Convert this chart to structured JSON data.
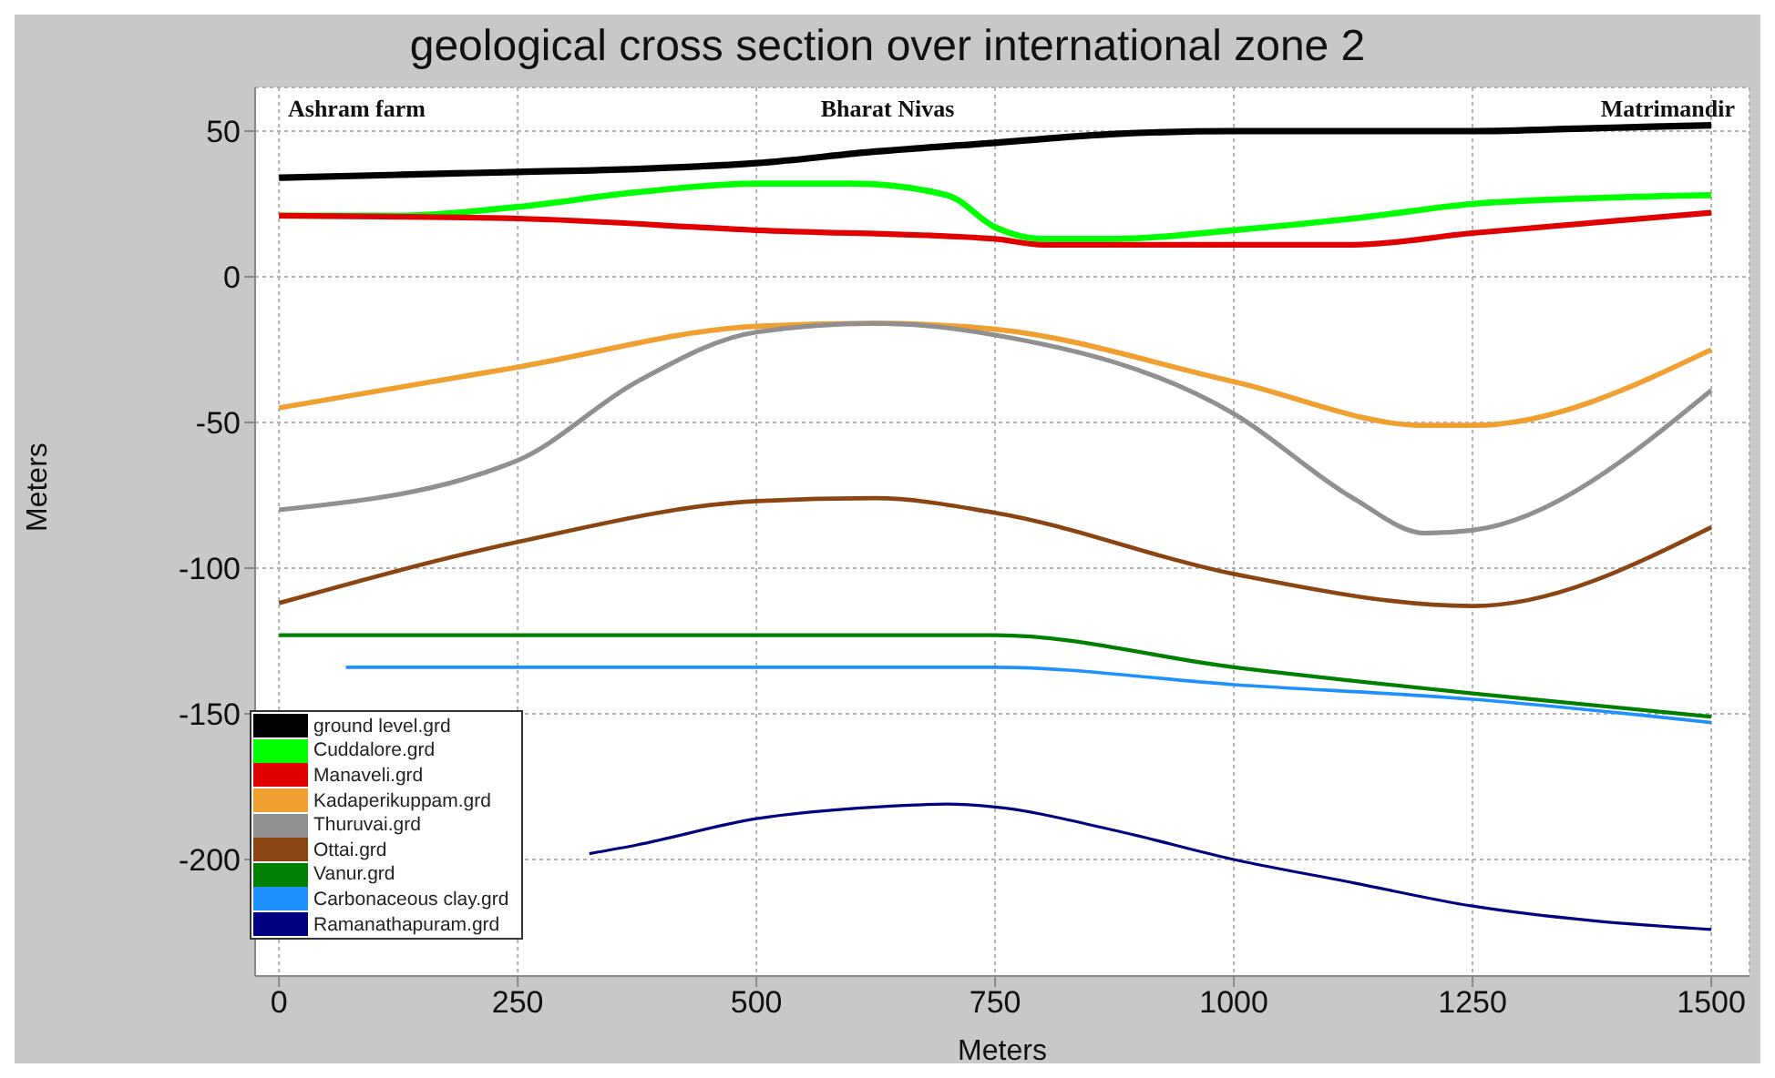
{
  "chart_data": {
    "type": "line",
    "title": "geological cross section over international zone 2",
    "xlabel": "Meters",
    "ylabel": "Meters",
    "xlim": [
      -25,
      1540
    ],
    "xticks": [
      0,
      250,
      500,
      750,
      1000,
      1250,
      1500
    ],
    "ylim": [
      -240,
      65
    ],
    "yticks": [
      -200,
      -150,
      -100,
      -50,
      0,
      50
    ],
    "grid": true,
    "legend": "bottom left",
    "annotations": [
      "Ashram farm",
      "Bharat Nivas",
      "Matrimandir"
    ],
    "series": [
      {
        "name": "ground level.grd",
        "color": "#000000",
        "x": [
          0,
          125,
          250,
          375,
          500,
          625,
          750,
          875,
          1000,
          1125,
          1250,
          1375,
          1500
        ],
        "values": [
          34,
          35,
          36,
          37,
          39,
          43,
          46,
          49,
          50,
          50,
          50,
          51,
          52
        ]
      },
      {
        "name": "Cuddalore.grd",
        "color": "#00ff00",
        "x": [
          0,
          125,
          250,
          375,
          500,
          600,
          700,
          750,
          800,
          875,
          1000,
          1125,
          1250,
          1375,
          1500
        ],
        "values": [
          21,
          21,
          24,
          29,
          32,
          32,
          28,
          17,
          13,
          13,
          16,
          20,
          25,
          27,
          28
        ]
      },
      {
        "name": "Manaveli.grd",
        "color": "#e00000",
        "x": [
          0,
          250,
          500,
          750,
          800,
          1000,
          1125,
          1250,
          1500
        ],
        "values": [
          21,
          20,
          16,
          13,
          11,
          11,
          11,
          15,
          22
        ]
      },
      {
        "name": "Kadaperikuppam.grd",
        "color": "#f0a030",
        "x": [
          0,
          250,
          500,
          625,
          750,
          1000,
          1200,
          1250,
          1500
        ],
        "values": [
          -45,
          -31,
          -17,
          -16,
          -18,
          -36,
          -51,
          -51,
          -25
        ]
      },
      {
        "name": "Thuruvai.grd",
        "color": "#909090",
        "x": [
          0,
          250,
          375,
          500,
          625,
          750,
          1000,
          1125,
          1200,
          1250,
          1500
        ],
        "values": [
          -80,
          -63,
          -36,
          -19,
          -16,
          -20,
          -47,
          -76,
          -88,
          -87,
          -39
        ]
      },
      {
        "name": "Ottai.grd",
        "color": "#8b4513",
        "x": [
          0,
          250,
          500,
          625,
          750,
          1000,
          1250,
          1500
        ],
        "values": [
          -112,
          -91,
          -77,
          -76,
          -81,
          -102,
          -113,
          -86
        ]
      },
      {
        "name": "Vanur.grd",
        "color": "#008000",
        "x": [
          0,
          250,
          500,
          750,
          1000,
          1250,
          1500
        ],
        "values": [
          -123,
          -123,
          -123,
          -123,
          -134,
          -143,
          -151
        ]
      },
      {
        "name": "Carbonaceous clay.grd",
        "color": "#1e90ff",
        "x": [
          70,
          250,
          500,
          750,
          1000,
          1250,
          1500
        ],
        "values": [
          -134,
          -134,
          -134,
          -134,
          -140,
          -145,
          -153
        ]
      },
      {
        "name": "Ramanathapuram.grd",
        "color": "#000080",
        "x": [
          325,
          375,
          500,
          625,
          700,
          750,
          875,
          1000,
          1125,
          1250,
          1375,
          1500
        ],
        "values": [
          -198,
          -195,
          -186,
          -182,
          -181,
          -182,
          -190,
          -200,
          -208,
          -216,
          -221,
          -224
        ]
      }
    ]
  }
}
